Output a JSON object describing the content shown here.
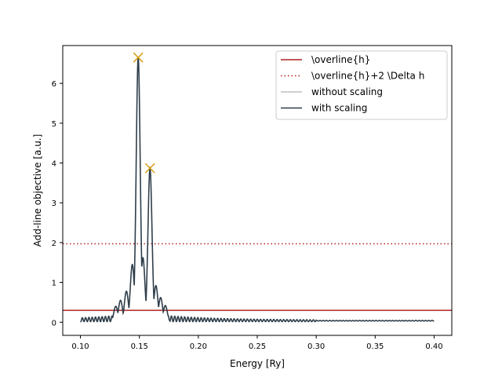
{
  "chart_data": {
    "type": "line",
    "title": "",
    "xlabel": "Energy [Ry]",
    "ylabel": "Add-line objective [a.u.]",
    "xlim": [
      0.085,
      0.415
    ],
    "ylim": [
      -0.33,
      6.95
    ],
    "xticks": [
      0.1,
      0.15,
      0.2,
      0.25,
      0.3,
      0.35,
      0.4
    ],
    "xtick_labels": [
      "0.10",
      "0.15",
      "0.20",
      "0.25",
      "0.30",
      "0.35",
      "0.40"
    ],
    "yticks": [
      0,
      1,
      2,
      3,
      4,
      5,
      6
    ],
    "ytick_labels": [
      "0",
      "1",
      "2",
      "3",
      "4",
      "5",
      "6"
    ],
    "grid": false,
    "legend_position": "top-right",
    "hlines": [
      {
        "label": "\\overline{h}",
        "y": 0.3,
        "color": "#b22222",
        "style": "solid"
      },
      {
        "label": "\\overline{h}+2 \\Delta h",
        "y": 1.97,
        "color": "#b22222",
        "style": "dotted"
      }
    ],
    "series": [
      {
        "name": "without scaling",
        "color": "#bfbfbf",
        "style": "solid",
        "x": [],
        "y": []
      },
      {
        "name": "with    scaling",
        "color": "#2f3e4a",
        "style": "solid",
        "x_range": [
          0.1,
          0.4
        ],
        "peaks": [
          {
            "x": 0.149,
            "y": 6.65
          },
          {
            "x": 0.159,
            "y": 3.87
          },
          {
            "x": 0.144,
            "y": 1.45
          },
          {
            "x": 0.153,
            "y": 1.62
          },
          {
            "x": 0.164,
            "y": 0.92
          },
          {
            "x": 0.139,
            "y": 0.78
          },
          {
            "x": 0.168,
            "y": 0.62
          },
          {
            "x": 0.134,
            "y": 0.55
          },
          {
            "x": 0.13,
            "y": 0.4
          },
          {
            "x": 0.172,
            "y": 0.42
          }
        ],
        "baseline": 0.03,
        "oscillation_period": 0.0028
      }
    ],
    "markers": [
      {
        "x": 0.149,
        "y": 6.65,
        "symbol": "x",
        "color": "#d4a017"
      },
      {
        "x": 0.159,
        "y": 3.87,
        "symbol": "x",
        "color": "#d4a017"
      }
    ],
    "legend": [
      {
        "label": "\\overline{h}",
        "color": "#b22222",
        "style": "solid"
      },
      {
        "label": "\\overline{h}+2 \\Delta h",
        "color": "#b22222",
        "style": "dotted"
      },
      {
        "label": "without scaling",
        "color": "#bfbfbf",
        "style": "solid"
      },
      {
        "label": "with    scaling",
        "color": "#2f3e4a",
        "style": "solid"
      }
    ]
  }
}
